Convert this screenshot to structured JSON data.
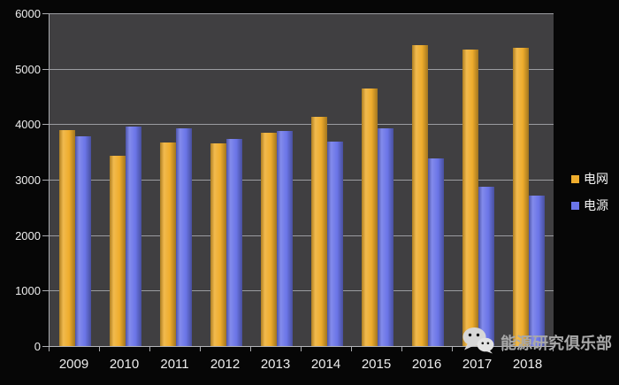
{
  "chart_data": {
    "type": "bar",
    "title": "",
    "xlabel": "",
    "ylabel": "",
    "categories": [
      "2009",
      "2010",
      "2011",
      "2012",
      "2013",
      "2014",
      "2015",
      "2016",
      "2017",
      "2018"
    ],
    "series": [
      {
        "name": "电网",
        "color": "#efad2d",
        "values": [
          3900,
          3430,
          3670,
          3660,
          3850,
          4130,
          4640,
          5420,
          5340,
          5380
        ]
      },
      {
        "name": "电源",
        "color": "#6b75e8",
        "values": [
          3790,
          3960,
          3920,
          3730,
          3880,
          3680,
          3930,
          3390,
          2880,
          2710
        ]
      }
    ],
    "ylim": [
      0,
      6000
    ],
    "yticks": [
      0,
      1000,
      2000,
      3000,
      4000,
      5000,
      6000
    ],
    "grid": true,
    "legend_position": "right"
  },
  "watermark": {
    "icon": "wechat-icon",
    "label": "能源研究俱乐部"
  },
  "colors": {
    "background": "#060606",
    "plot_background": "#403f41",
    "gridline": "#9b9ca0",
    "axis": "#aaabaf",
    "tick_label": "#ececec",
    "legend_text": "#f5f5f5",
    "watermark_text": "#a9a9a9"
  }
}
